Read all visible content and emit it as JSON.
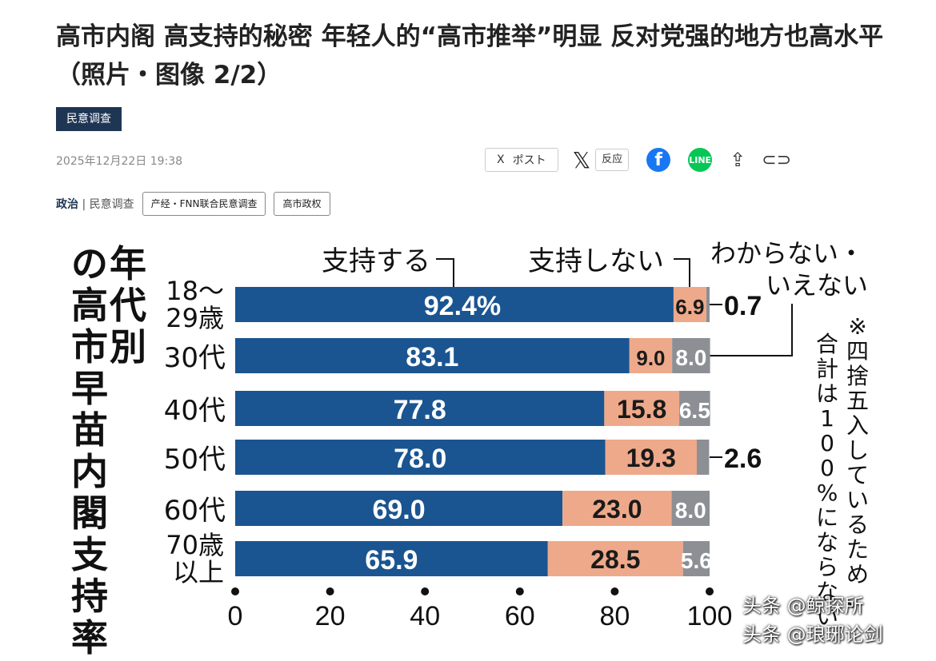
{
  "article": {
    "headline": "高市内阁 高支持的秘密 年轻人的“高市推举”明显 反对党强的地方也高水平（照片・图像 2/2）",
    "category_tag": "民意调查",
    "date": "2025年12月22日 19:38",
    "share": {
      "post_label": "ポスト",
      "react_label": "反应"
    },
    "categories": {
      "primary": "政治",
      "secondary": "民意调查"
    },
    "tags": [
      "产经・FNN联合民意调查",
      "高市政权"
    ]
  },
  "chart_data": {
    "type": "bar",
    "stacked": true,
    "orientation": "horizontal",
    "title": "年代別の高市早苗内閣支持率",
    "categories": [
      "18〜29歳",
      "30代",
      "40代",
      "50代",
      "60代",
      "70歳以上"
    ],
    "series": [
      {
        "name": "支持する",
        "color": "#1a5591",
        "values": [
          92.4,
          83.1,
          77.8,
          78.0,
          69.0,
          65.9
        ]
      },
      {
        "name": "支持しない",
        "color": "#eea98a",
        "values": [
          6.9,
          9.0,
          15.8,
          19.3,
          23.0,
          28.5
        ]
      },
      {
        "name": "わからない・いえない",
        "color": "#8c8f94",
        "values": [
          0.7,
          8.0,
          6.5,
          2.6,
          8.0,
          5.6
        ]
      }
    ],
    "value_labels": [
      [
        "92.4%",
        "6.9",
        "0.7"
      ],
      [
        "83.1",
        "9.0",
        "8.0"
      ],
      [
        "77.8",
        "15.8",
        "6.5"
      ],
      [
        "78.0",
        "19.3",
        "2.6"
      ],
      [
        "69.0",
        "23.0",
        "8.0"
      ],
      [
        "65.9",
        "28.5",
        "5.6"
      ]
    ],
    "xlim": [
      0,
      100
    ],
    "xticks": [
      0,
      20,
      40,
      60,
      80,
      100
    ],
    "note": "※四捨五入しているため、合計は100%にならない"
  },
  "watermarks": [
    "头条 @鲸探所",
    "头条 @琅琊论剑"
  ]
}
